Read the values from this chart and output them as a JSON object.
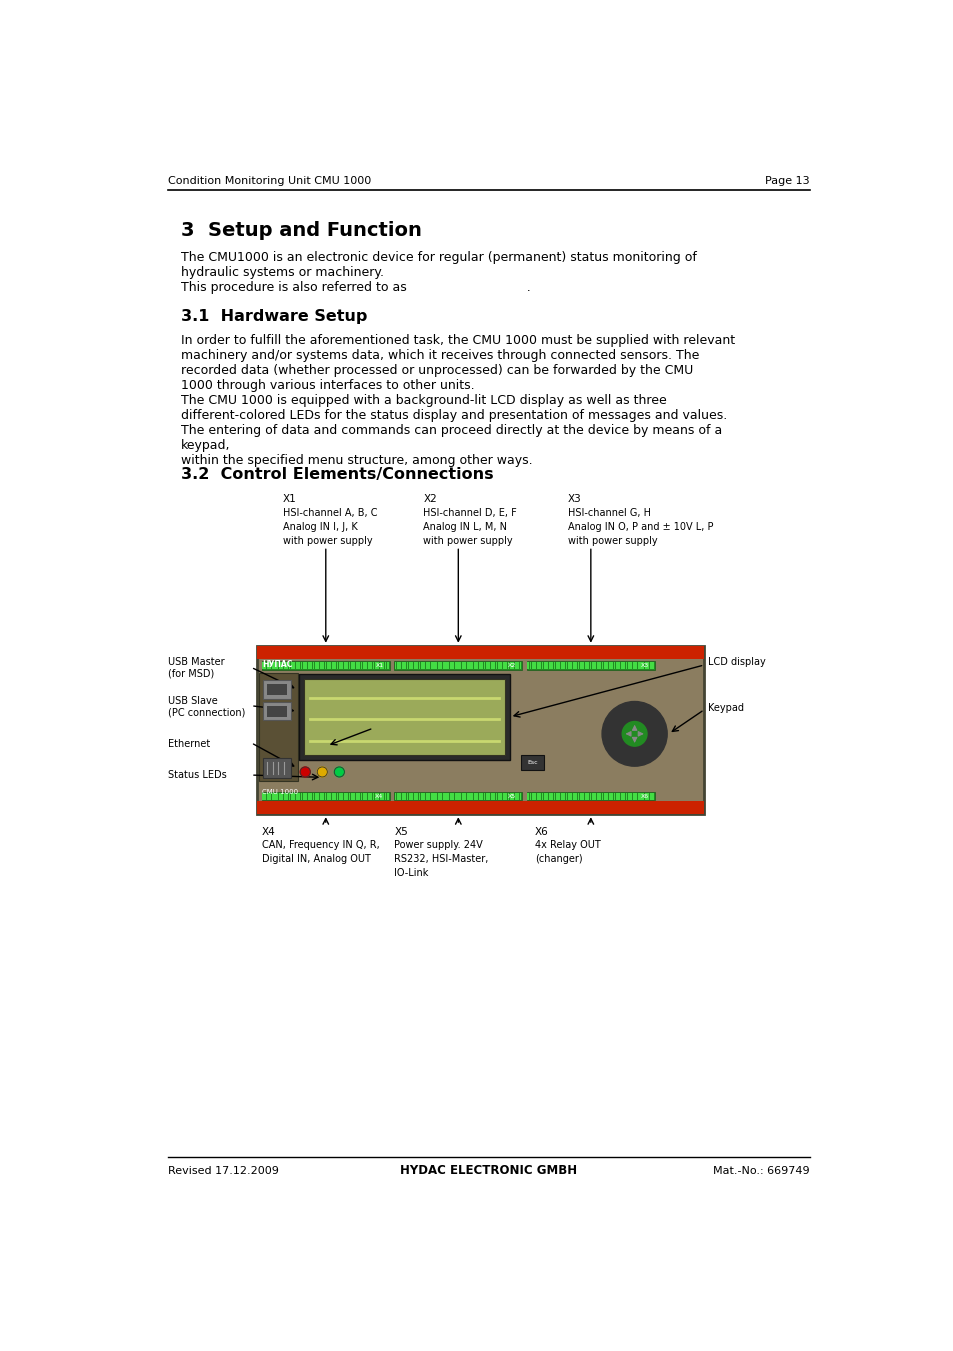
{
  "page_width": 9.54,
  "page_height": 13.51,
  "bg": "#ffffff",
  "header_left": "Condition Monitoring Unit CMU 1000",
  "header_right": "Page 13",
  "footer_left": "Revised 17.12.2009",
  "footer_center": "HYDAC ELECTRONIC GMBH",
  "footer_right": "Mat.-No.: 669749",
  "sec3_title": "3  Setup and Function",
  "sec3_p1": "The CMU1000 is an electronic device for regular (permanent) status monitoring of\nhydraulic systems or machinery.\nThis procedure is also referred to as                              .",
  "sec31_title": "3.1  Hardware Setup",
  "sec31_body": "In order to fulfill the aforementioned task, the CMU 1000 must be supplied with relevant\nmachinery and/or systems data, which it receives through connected sensors. The\nrecorded data (whether processed or unprocessed) can be forwarded by the CMU\n1000 through various interfaces to other units.\nThe CMU 1000 is equipped with a background-lit LCD display as well as three\ndifferent-colored LEDs for the status display and presentation of messages and values.\nThe entering of data and commands can proceed directly at the device by means of a\nkeypad,\nwithin the specified menu structure, among other ways.",
  "sec32_title": "3.2  Control Elements/Connections",
  "x1_lines": [
    "X1",
    "HSI-channel A, B, C",
    "Analog IN I, J, K",
    "with power supply"
  ],
  "x2_lines": [
    "X2",
    "HSI-channel D, E, F",
    "Analog IN L, M, N",
    "with power supply"
  ],
  "x3_lines": [
    "X3",
    "HSI-channel G, H",
    "Analog IN O, P and ± 10V L, P",
    "with power supply"
  ],
  "x4_lines": [
    "X4",
    "CAN, Frequency IN Q, R,",
    "Digital IN, Analog OUT"
  ],
  "x5_lines": [
    "X5",
    "Power supply. 24V",
    "RS232, HSI-Master,",
    "IO-Link"
  ],
  "x6_lines": [
    "X6",
    "4x Relay OUT",
    "(changer)"
  ],
  "left_labels": [
    [
      "USB Master",
      "(for MSD)"
    ],
    [
      "USB Slave",
      "(PC connection)"
    ],
    [
      "Ethernet"
    ],
    [
      "Status LEDs"
    ]
  ],
  "right_labels": [
    "LCD display",
    "Keypad"
  ],
  "dev_body_color": "#8B7D60",
  "dev_dark_color": "#6B5C40",
  "dev_red_color": "#CC2200",
  "dev_green_conn": "#228B22",
  "dev_pin_color": "#44DD44",
  "dev_lcd_bg": "#9BAA5A",
  "dev_lcd_text": "#C8D870",
  "dev_keypad_outer": "#333333",
  "dev_keypad_inner": "#228B22",
  "dev_led_red": "#CC0000",
  "dev_led_yellow": "#DDAA00",
  "dev_led_green": "#00CC44",
  "dev_port_color": "#888888",
  "dev_eth_color": "#666666"
}
